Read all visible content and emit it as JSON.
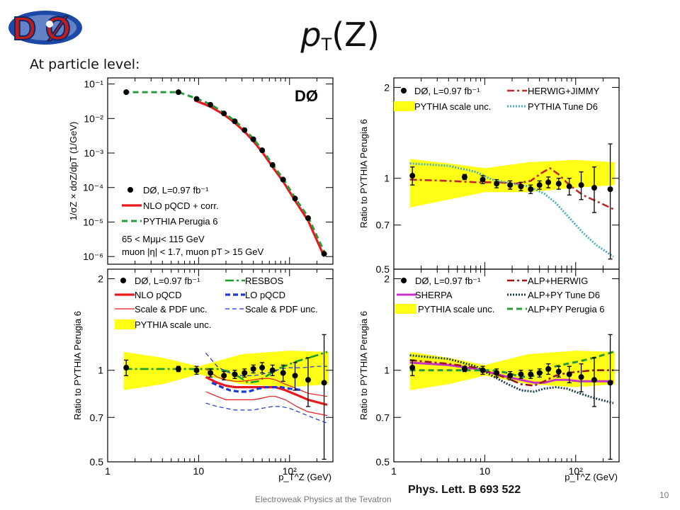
{
  "slide": {
    "title_main": "p",
    "title_sub": "T",
    "title_rest": "(Z)",
    "subtitle": "At particle level:",
    "reference": "Phys. Lett. B 693 522",
    "footer": "Electroweak Physics at the Tevatron",
    "page_number": "10",
    "logo_text": "DØ"
  },
  "colors": {
    "data": "#000000",
    "nlo": "#e8191d",
    "pythia_perugia": "#2b9a3c",
    "herwig_jimmy": "#c0282c",
    "tune_d6": "#4aaec4",
    "resbos": "#199d2b",
    "lo_pqcd": "#1c35d8",
    "sherpa": "#cc2fc6",
    "alp_herwig": "#991818",
    "alp_py_d6": "#1b3d52",
    "band": "#ffff16"
  },
  "chart_data": [
    {
      "id": "spectrum",
      "type": "line",
      "xscale": "log",
      "xlim": [
        1,
        300
      ],
      "yscale": "log",
      "ylim": [
        6e-07,
        0.15
      ],
      "ylabel": "1/σZ × dσZ/dpT (1/GeV)",
      "yticks": [
        "10⁻¹",
        "10⁻²",
        "10⁻³",
        "10⁻⁴",
        "10⁻⁵",
        "10⁻⁶"
      ],
      "ytick_values": [
        0.1,
        0.01,
        0.001,
        0.0001,
        1e-05,
        1e-06
      ],
      "logo": "DØ",
      "legend": [
        "DØ, L=0.97 fb⁻¹",
        "NLO pQCD + corr.",
        "PYTHIA Perugia 6"
      ],
      "annotations": [
        "65 < Mμμ< 115 GeV",
        "muon |η| < 1.7, muon pT > 15 GeV"
      ],
      "series": [
        {
          "name": "DØ, L=0.97 fb⁻¹",
          "style": "points",
          "x": [
            1.6,
            6,
            9.5,
            13.5,
            19,
            25,
            32,
            40,
            50,
            65,
            85,
            115,
            160,
            240
          ],
          "y": [
            0.058,
            0.058,
            0.037,
            0.025,
            0.014,
            0.0083,
            0.0046,
            0.0025,
            0.0012,
            0.00045,
            0.00017,
            4.8e-05,
            1.3e-05,
            1.2e-06
          ]
        },
        {
          "name": "NLO pQCD + corr.",
          "style": "nlo",
          "x": [
            9,
            13.5,
            19,
            25,
            32,
            40,
            50,
            65,
            85,
            115,
            160,
            240
          ],
          "y": [
            0.034,
            0.022,
            0.013,
            0.0075,
            0.0042,
            0.0022,
            0.00108,
            0.0004,
            0.00015,
            4.2e-05,
            1.1e-05,
            1e-06
          ]
        },
        {
          "name": "PYTHIA Perugia 6",
          "style": "perugia",
          "x": [
            1.5,
            6,
            9.5,
            13.5,
            19,
            25,
            32,
            40,
            50,
            65,
            85,
            115,
            160,
            240
          ],
          "y": [
            0.058,
            0.058,
            0.038,
            0.026,
            0.0145,
            0.0086,
            0.0048,
            0.0026,
            0.00125,
            0.00047,
            0.00018,
            5e-05,
            1.4e-05,
            1.4e-06
          ]
        }
      ]
    },
    {
      "id": "ratio-generators",
      "type": "line",
      "xscale": "log",
      "xlim": [
        1,
        300
      ],
      "yscale": "log",
      "ylim": [
        0.5,
        2.15
      ],
      "ylabel": "Ratio to PYTHIA Perugia 6",
      "yticks": [
        "2",
        "1",
        "0.7",
        "0.5"
      ],
      "ytick_values": [
        2,
        1,
        0.7,
        0.5
      ],
      "legend": [
        "DØ, L=0.97 fb⁻¹",
        "PYTHIA scale unc.",
        "HERWIG+JIMMY",
        "PYTHIA Tune D6"
      ],
      "band": {
        "x": [
          1.5,
          4,
          10,
          30,
          100,
          270
        ],
        "lo": [
          0.8,
          0.85,
          0.9,
          0.9,
          0.93,
          0.95
        ],
        "hi": [
          1.16,
          1.12,
          1.08,
          1.13,
          1.15,
          1.13
        ]
      },
      "series": [
        {
          "name": "DØ, L=0.97 fb⁻¹",
          "style": "points",
          "x": [
            1.6,
            6,
            9.5,
            13.5,
            19,
            25,
            32,
            40,
            50,
            65,
            85,
            115,
            160,
            240
          ],
          "y": [
            1.02,
            1.01,
            0.99,
            0.96,
            0.95,
            0.94,
            0.92,
            0.95,
            0.97,
            0.96,
            0.94,
            0.95,
            0.93,
            0.92
          ],
          "err": [
            0.07,
            0.02,
            0.03,
            0.03,
            0.03,
            0.03,
            0.03,
            0.03,
            0.04,
            0.04,
            0.06,
            0.1,
            0.16,
            0.38
          ]
        },
        {
          "name": "HERWIG+JIMMY",
          "style": "herwig",
          "x": [
            1.5,
            4,
            8,
            14,
            22,
            32,
            42,
            52,
            65,
            85,
            120,
            200,
            260
          ],
          "y": [
            0.99,
            0.98,
            0.97,
            0.97,
            0.96,
            0.98,
            1.04,
            1.08,
            1.03,
            0.95,
            0.88,
            0.82,
            0.79
          ]
        },
        {
          "name": "PYTHIA Tune D6",
          "style": "tuned6",
          "x": [
            1.5,
            4,
            8,
            12,
            20,
            30,
            45,
            60,
            85,
            120,
            170,
            260
          ],
          "y": [
            1.12,
            1.1,
            1.05,
            0.99,
            0.96,
            0.94,
            0.89,
            0.83,
            0.74,
            0.66,
            0.6,
            0.55
          ]
        }
      ]
    },
    {
      "id": "ratio-qcd",
      "type": "line",
      "xscale": "log",
      "xlim": [
        1,
        300
      ],
      "yscale": "log",
      "ylim": [
        0.5,
        2.15
      ],
      "ylabel": "Ratio to PYTHIA Perugia 6",
      "xlabel": "p_T^Z (GeV)",
      "xticks": [
        "1",
        "10",
        "10²"
      ],
      "xtick_values": [
        1,
        10,
        100
      ],
      "yticks": [
        "2",
        "1",
        "0.7",
        "0.5"
      ],
      "ytick_values": [
        2,
        1,
        0.7,
        0.5
      ],
      "legend": [
        "DØ, L=0.97 fb⁻¹",
        "NLO pQCD",
        "Scale & PDF unc.",
        "PYTHIA scale unc.",
        "RESBOS",
        "LO pQCD",
        "Scale & PDF unc."
      ],
      "band": {
        "x": [
          1.5,
          4,
          10,
          30,
          100,
          270
        ],
        "lo": [
          0.86,
          0.9,
          0.97,
          0.9,
          0.88,
          0.9
        ],
        "hi": [
          1.15,
          1.1,
          1.03,
          1.13,
          1.16,
          1.15
        ]
      },
      "series": [
        {
          "name": "DØ, L=0.97 fb⁻¹",
          "style": "points",
          "x": [
            1.6,
            6,
            9.5,
            13.5,
            19,
            25,
            32,
            40,
            50,
            65,
            85,
            115,
            160,
            240
          ],
          "y": [
            1.02,
            1.01,
            1.0,
            0.98,
            0.96,
            0.97,
            0.98,
            1.01,
            1.02,
            1.0,
            0.98,
            0.96,
            0.93,
            0.91
          ],
          "err": [
            0.06,
            0.02,
            0.03,
            0.03,
            0.03,
            0.03,
            0.03,
            0.03,
            0.04,
            0.04,
            0.06,
            0.1,
            0.17,
            0.4
          ]
        },
        {
          "name": "RESBOS",
          "style": "resbos",
          "x": [
            1.5,
            5,
            10,
            16,
            22,
            28,
            35,
            45,
            60,
            80,
            120,
            200,
            260
          ],
          "y": [
            1.01,
            1.01,
            1.01,
            1.01,
            0.99,
            0.95,
            0.91,
            0.92,
            0.97,
            1.02,
            1.07,
            1.12,
            1.15
          ]
        },
        {
          "name": "NLO pQCD",
          "style": "nlo",
          "x": [
            12,
            16,
            20,
            25,
            30,
            40,
            50,
            60,
            70,
            90,
            120,
            160,
            260
          ],
          "y": [
            0.95,
            0.91,
            0.89,
            0.88,
            0.88,
            0.88,
            0.88,
            0.88,
            0.88,
            0.86,
            0.83,
            0.8,
            0.77
          ]
        },
        {
          "name": "Scale & PDF unc.",
          "style": "nlo_unc",
          "x": [
            12,
            16,
            20,
            25,
            30,
            40,
            50,
            60,
            70,
            90,
            120,
            160,
            260
          ],
          "y": [
            1.01,
            0.95,
            0.93,
            0.92,
            0.92,
            0.93,
            0.94,
            0.94,
            0.93,
            0.9,
            0.87,
            0.84,
            0.82
          ]
        },
        {
          "name": "Scale & PDF unc.",
          "style": "nlo_unc",
          "x": [
            12,
            16,
            20,
            25,
            30,
            40,
            50,
            60,
            70,
            90,
            120,
            160,
            260
          ],
          "y": [
            0.85,
            0.82,
            0.8,
            0.8,
            0.8,
            0.8,
            0.81,
            0.82,
            0.82,
            0.8,
            0.76,
            0.73,
            0.71
          ]
        },
        {
          "name": "LO pQCD",
          "style": "lo",
          "x": [
            14,
            18,
            22,
            28,
            35,
            45,
            55,
            65,
            80,
            100,
            140
          ],
          "y": [
            0.91,
            0.88,
            0.86,
            0.85,
            0.85,
            0.87,
            0.88,
            0.88,
            0.88,
            0.87,
            0.86
          ]
        },
        {
          "name": "Scale & PDF unc.",
          "style": "lo_unc",
          "x": [
            12,
            16,
            20,
            25,
            30,
            40,
            50,
            65,
            80,
            100,
            140,
            200,
            260
          ],
          "y": [
            1.14,
            1.03,
            0.99,
            0.97,
            0.96,
            0.96,
            0.97,
            0.99,
            1.01,
            1.02,
            1.02,
            1.03,
            1.03
          ]
        },
        {
          "name": "Scale & PDF unc.",
          "style": "lo_unc",
          "x": [
            12,
            16,
            20,
            25,
            30,
            40,
            50,
            65,
            80,
            100,
            140,
            200,
            260
          ],
          "y": [
            0.78,
            0.76,
            0.75,
            0.74,
            0.74,
            0.74,
            0.75,
            0.76,
            0.76,
            0.75,
            0.72,
            0.69,
            0.67
          ]
        }
      ]
    },
    {
      "id": "ratio-alpgen",
      "type": "line",
      "xscale": "log",
      "xlim": [
        1,
        300
      ],
      "yscale": "log",
      "ylim": [
        0.5,
        2.15
      ],
      "ylabel": "Ratio to PYTHIA Perugia 6",
      "xlabel": "p_T^Z (GeV)",
      "xticks": [
        "1",
        "10",
        "10²"
      ],
      "xtick_values": [
        1,
        10,
        100
      ],
      "yticks": [
        "2",
        "1",
        "0.7",
        "0.5"
      ],
      "ytick_values": [
        2,
        1,
        0.7,
        0.5
      ],
      "legend": [
        "DØ, L=0.97 fb⁻¹",
        "SHERPA",
        "PYTHIA scale unc.",
        "ALP+HERWIG",
        "ALP+PY Tune D6",
        "ALP+PY Perugia 6"
      ],
      "band": {
        "x": [
          1.5,
          4,
          10,
          30,
          100,
          270
        ],
        "lo": [
          0.86,
          0.9,
          0.96,
          0.9,
          0.88,
          0.9
        ],
        "hi": [
          1.15,
          1.1,
          1.04,
          1.13,
          1.16,
          1.15
        ]
      },
      "series": [
        {
          "name": "DØ, L=0.97 fb⁻¹",
          "style": "points",
          "x": [
            1.6,
            6,
            9.5,
            13.5,
            19,
            25,
            32,
            40,
            50,
            65,
            85,
            115,
            160,
            240
          ],
          "y": [
            1.02,
            1.01,
            1.0,
            0.98,
            0.96,
            0.97,
            0.97,
            0.98,
            1.01,
            0.99,
            0.97,
            0.95,
            0.93,
            0.91
          ],
          "err": [
            0.06,
            0.02,
            0.03,
            0.03,
            0.03,
            0.03,
            0.03,
            0.03,
            0.04,
            0.04,
            0.06,
            0.1,
            0.17,
            0.4
          ]
        },
        {
          "name": "SHERPA",
          "style": "sherpa",
          "x": [
            1.5,
            4,
            8,
            12,
            18,
            25,
            35,
            45,
            60,
            80,
            110,
            160,
            260
          ],
          "y": [
            1.06,
            1.04,
            1.01,
            0.98,
            0.95,
            0.93,
            0.91,
            0.91,
            0.93,
            0.93,
            0.92,
            0.92,
            0.92
          ]
        },
        {
          "name": "ALP+HERWIG",
          "style": "alpherwig",
          "x": [
            1.5,
            4,
            8,
            12,
            18,
            25,
            35,
            45,
            60,
            80,
            110,
            160,
            260
          ],
          "y": [
            1.08,
            1.05,
            1.02,
            0.98,
            0.94,
            0.9,
            0.89,
            0.92,
            0.96,
            0.98,
            0.99,
            1.0,
            1.0
          ]
        },
        {
          "name": "ALP+PY Tune D6",
          "style": "alpd6",
          "x": [
            1.5,
            4,
            8,
            12,
            18,
            25,
            35,
            45,
            60,
            80,
            110,
            160,
            260
          ],
          "y": [
            1.12,
            1.09,
            1.03,
            0.96,
            0.9,
            0.86,
            0.85,
            0.87,
            0.88,
            0.87,
            0.84,
            0.81,
            0.78
          ]
        },
        {
          "name": "ALP+PY Perugia 6",
          "style": "alpperugia",
          "x": [
            1.5,
            4,
            8,
            12,
            18,
            25,
            35,
            45,
            60,
            80,
            110,
            160,
            260
          ],
          "y": [
            1.0,
            1.0,
            1.0,
            1.0,
            0.98,
            0.95,
            0.96,
            0.99,
            1.03,
            1.05,
            1.07,
            1.1,
            1.15
          ]
        }
      ]
    }
  ]
}
